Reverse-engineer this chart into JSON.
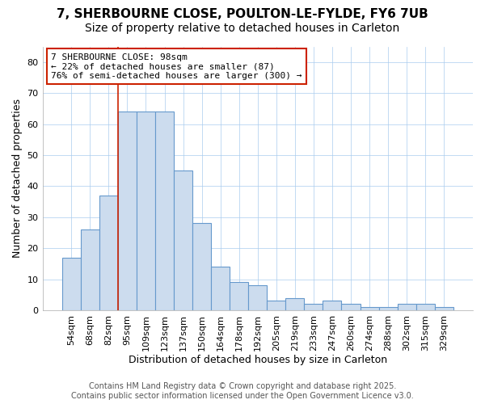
{
  "categories": [
    "54sqm",
    "68sqm",
    "82sqm",
    "95sqm",
    "109sqm",
    "123sqm",
    "137sqm",
    "150sqm",
    "164sqm",
    "178sqm",
    "192sqm",
    "205sqm",
    "219sqm",
    "233sqm",
    "247sqm",
    "260sqm",
    "274sqm",
    "288sqm",
    "302sqm",
    "315sqm",
    "329sqm"
  ],
  "values": [
    17,
    26,
    37,
    64,
    64,
    64,
    45,
    28,
    14,
    9,
    8,
    3,
    4,
    2,
    3,
    2,
    1,
    1,
    2,
    2,
    1
  ],
  "bar_color": "#ccdcee",
  "bar_edgecolor": "#6699cc",
  "bar_linewidth": 0.8,
  "vline_x_index": 3,
  "vline_color": "#cc2200",
  "title1": "7, SHERBOURNE CLOSE, POULTON-LE-FYLDE, FY6 7UB",
  "title2": "Size of property relative to detached houses in Carleton",
  "xlabel": "Distribution of detached houses by size in Carleton",
  "ylabel": "Number of detached properties",
  "ylim": [
    0,
    85
  ],
  "yticks": [
    0,
    10,
    20,
    30,
    40,
    50,
    60,
    70,
    80
  ],
  "annotation_text": "7 SHERBOURNE CLOSE: 98sqm\n← 22% of detached houses are smaller (87)\n76% of semi-detached houses are larger (300) →",
  "annotation_box_color": "#ffffff",
  "annotation_box_edgecolor": "#cc2200",
  "footer1": "Contains HM Land Registry data © Crown copyright and database right 2025.",
  "footer2": "Contains public sector information licensed under the Open Government Licence v3.0.",
  "bg_color": "#ffffff",
  "plot_bg_color": "#ffffff",
  "title1_fontsize": 11,
  "title2_fontsize": 10,
  "xlabel_fontsize": 9,
  "ylabel_fontsize": 9,
  "tick_fontsize": 8,
  "annotation_fontsize": 8,
  "footer_fontsize": 7
}
